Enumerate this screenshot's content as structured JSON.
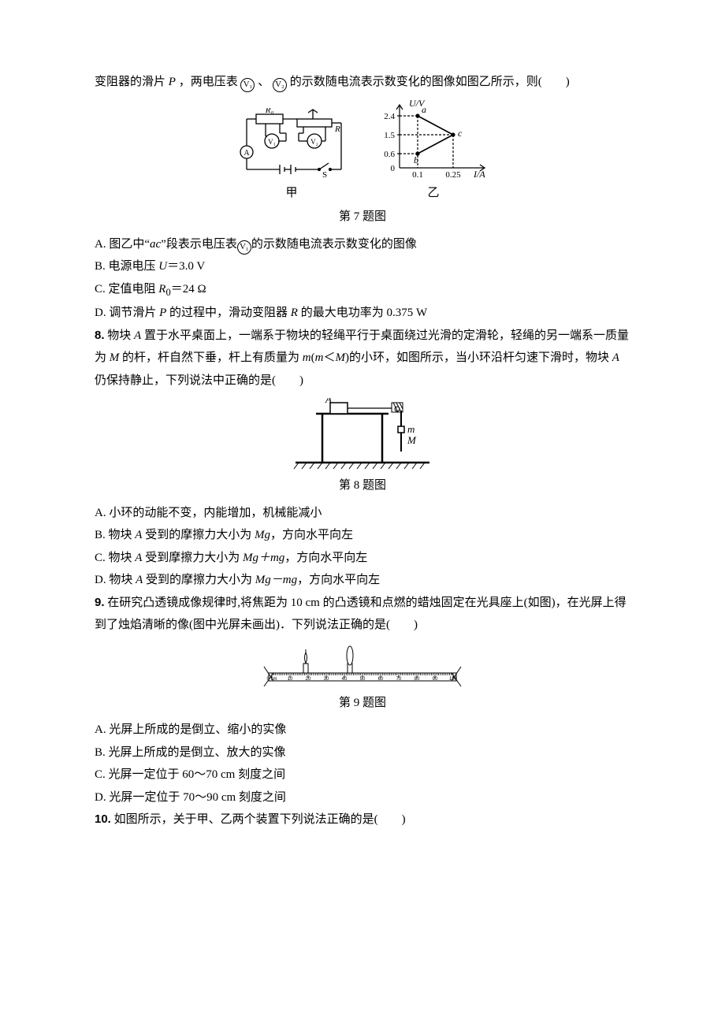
{
  "q7": {
    "intro": "变阻器的滑片",
    "intro2": "，两电压表",
    "intro3": "、",
    "intro4": "的示数随电流表示数变化的图像如图乙所示，则(　　)",
    "P": "P",
    "V1": "V₁",
    "V2": "V₂",
    "caption": "第 7 题图",
    "sub_jia": "甲",
    "sub_yi": "乙",
    "A": "A. 图乙中“",
    "A_ac": "ac",
    "A2": "”段表示电压表",
    "A3": "的示数随电流表示数变化的图像",
    "B": "B. 电源电压 ",
    "B_U": "U",
    "B2": "＝3.0 V",
    "C": "C. 定值电阻 ",
    "C_R0": "R",
    "C_R0sub": "0",
    "C2": "＝24 Ω",
    "D": "D. 调节滑片 ",
    "D_P": "P",
    "D2": " 的过程中，滑动变阻器 ",
    "D_R": "R",
    "D3": " 的最大电功率为 0.375 W",
    "circuit": {
      "R0": "R₀",
      "P": "P",
      "R": "R",
      "V1": "V₁",
      "V2": "V₂",
      "A": "A",
      "S": "S"
    },
    "chart": {
      "y_label": "U/V",
      "x_label": "I/A",
      "y_ticks": [
        "2.4",
        "1.5",
        "0.6",
        "0"
      ],
      "x_ticks": [
        "0.1",
        "0.25"
      ],
      "a": "a",
      "b": "b",
      "c": "c"
    }
  },
  "q8": {
    "num": "8.",
    "text1": " 物块 ",
    "A": "A",
    "text2": " 置于水平桌面上，一端系于物块的轻绳平行于桌面绕过光滑的定滑轮，轻绳的另一端系一质量为 ",
    "M": "M",
    "text3": " 的杆，杆自然下垂，杆上有质量为 ",
    "m": "m",
    "text4": "(",
    "text5": "＜",
    "text6": ")的小环，如图所示，当小环沿杆匀速下滑时，物块 ",
    "text7": " 仍保持静止，下列说法中正确的是(　　)",
    "caption": "第 8 题图",
    "optA": "A. 小环的动能不变，内能增加，机械能减小",
    "optB1": "B. 物块 ",
    "optB2": " 受到的摩擦力大小为 ",
    "optB_Mg": "Mg",
    "optB3": "，方向水平向左",
    "optC1": "C. 物块 ",
    "optC2": " 受到摩擦力大小为 ",
    "optC_f": "Mg＋mg",
    "optC3": "，方向水平向左",
    "optD1": "D. 物块 ",
    "optD2": " 受到的摩擦力大小为 ",
    "optD_f": "Mg－mg",
    "optD3": "，方向水平向左",
    "fig": {
      "A": "A",
      "m": "m",
      "M": "M"
    }
  },
  "q9": {
    "num": "9.",
    "text1": " 在研究凸透镜成像规律时,将焦距为 10 cm 的凸透镜和点燃的蜡烛固定在光具座上(如图)，在光屏上得到了烛焰清晰的像(图中光屏未画出)．下列说法正确的是(　　)",
    "caption": "第 9 题图",
    "optA": "A. 光屏上所成的是倒立、缩小的实像",
    "optB": "B. 光屏上所成的是倒立、放大的实像",
    "optC": "C. 光屏一定位于 60～70 cm 刻度之间",
    "optD": "D. 光屏一定位于 70～90 cm 刻度之间",
    "ruler": {
      "ticks": [
        "0 cm",
        "10",
        "20",
        "30",
        "40",
        "50",
        "60",
        "70",
        "80",
        "90",
        "100"
      ]
    }
  },
  "q10": {
    "num": "10.",
    "text1": " 如图所示，关于甲、乙两个装置下列说法正确的是(　　)"
  }
}
